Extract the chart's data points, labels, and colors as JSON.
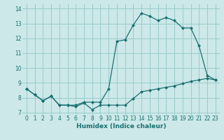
{
  "xlabel": "Humidex (Indice chaleur)",
  "bg_color": "#cce8e8",
  "grid_color": "#99cccc",
  "line_color": "#1a7070",
  "xlim": [
    -0.5,
    23.5
  ],
  "ylim": [
    6.85,
    14.3
  ],
  "yticks": [
    7,
    8,
    9,
    10,
    11,
    12,
    13,
    14
  ],
  "xticks": [
    0,
    1,
    2,
    3,
    4,
    5,
    6,
    7,
    8,
    9,
    10,
    11,
    12,
    13,
    14,
    15,
    16,
    17,
    18,
    19,
    20,
    21,
    22,
    23
  ],
  "line1_x": [
    0,
    1,
    2,
    3,
    4,
    5,
    6,
    7,
    8,
    9,
    10,
    11,
    12,
    13,
    14,
    15,
    16,
    17,
    18,
    19,
    20,
    21,
    22,
    23
  ],
  "line1_y": [
    8.6,
    8.2,
    7.8,
    8.1,
    7.5,
    7.5,
    7.4,
    7.65,
    7.2,
    7.5,
    7.5,
    7.5,
    7.5,
    7.95,
    8.4,
    8.5,
    8.6,
    8.7,
    8.8,
    8.95,
    9.1,
    9.2,
    9.3,
    9.2
  ],
  "line2_x": [
    0,
    1,
    2,
    3,
    4,
    5,
    6,
    7,
    8,
    9,
    10,
    11,
    12,
    13,
    14,
    15,
    16,
    17,
    18,
    19,
    20,
    21,
    22,
    23
  ],
  "line2_y": [
    8.6,
    8.2,
    7.8,
    8.1,
    7.5,
    7.5,
    7.5,
    7.7,
    7.7,
    7.7,
    8.6,
    11.8,
    11.9,
    12.9,
    13.7,
    13.5,
    13.2,
    13.4,
    13.2,
    12.7,
    12.7,
    11.5,
    9.5,
    9.2
  ],
  "tick_fontsize": 5.5,
  "xlabel_fontsize": 6.5
}
